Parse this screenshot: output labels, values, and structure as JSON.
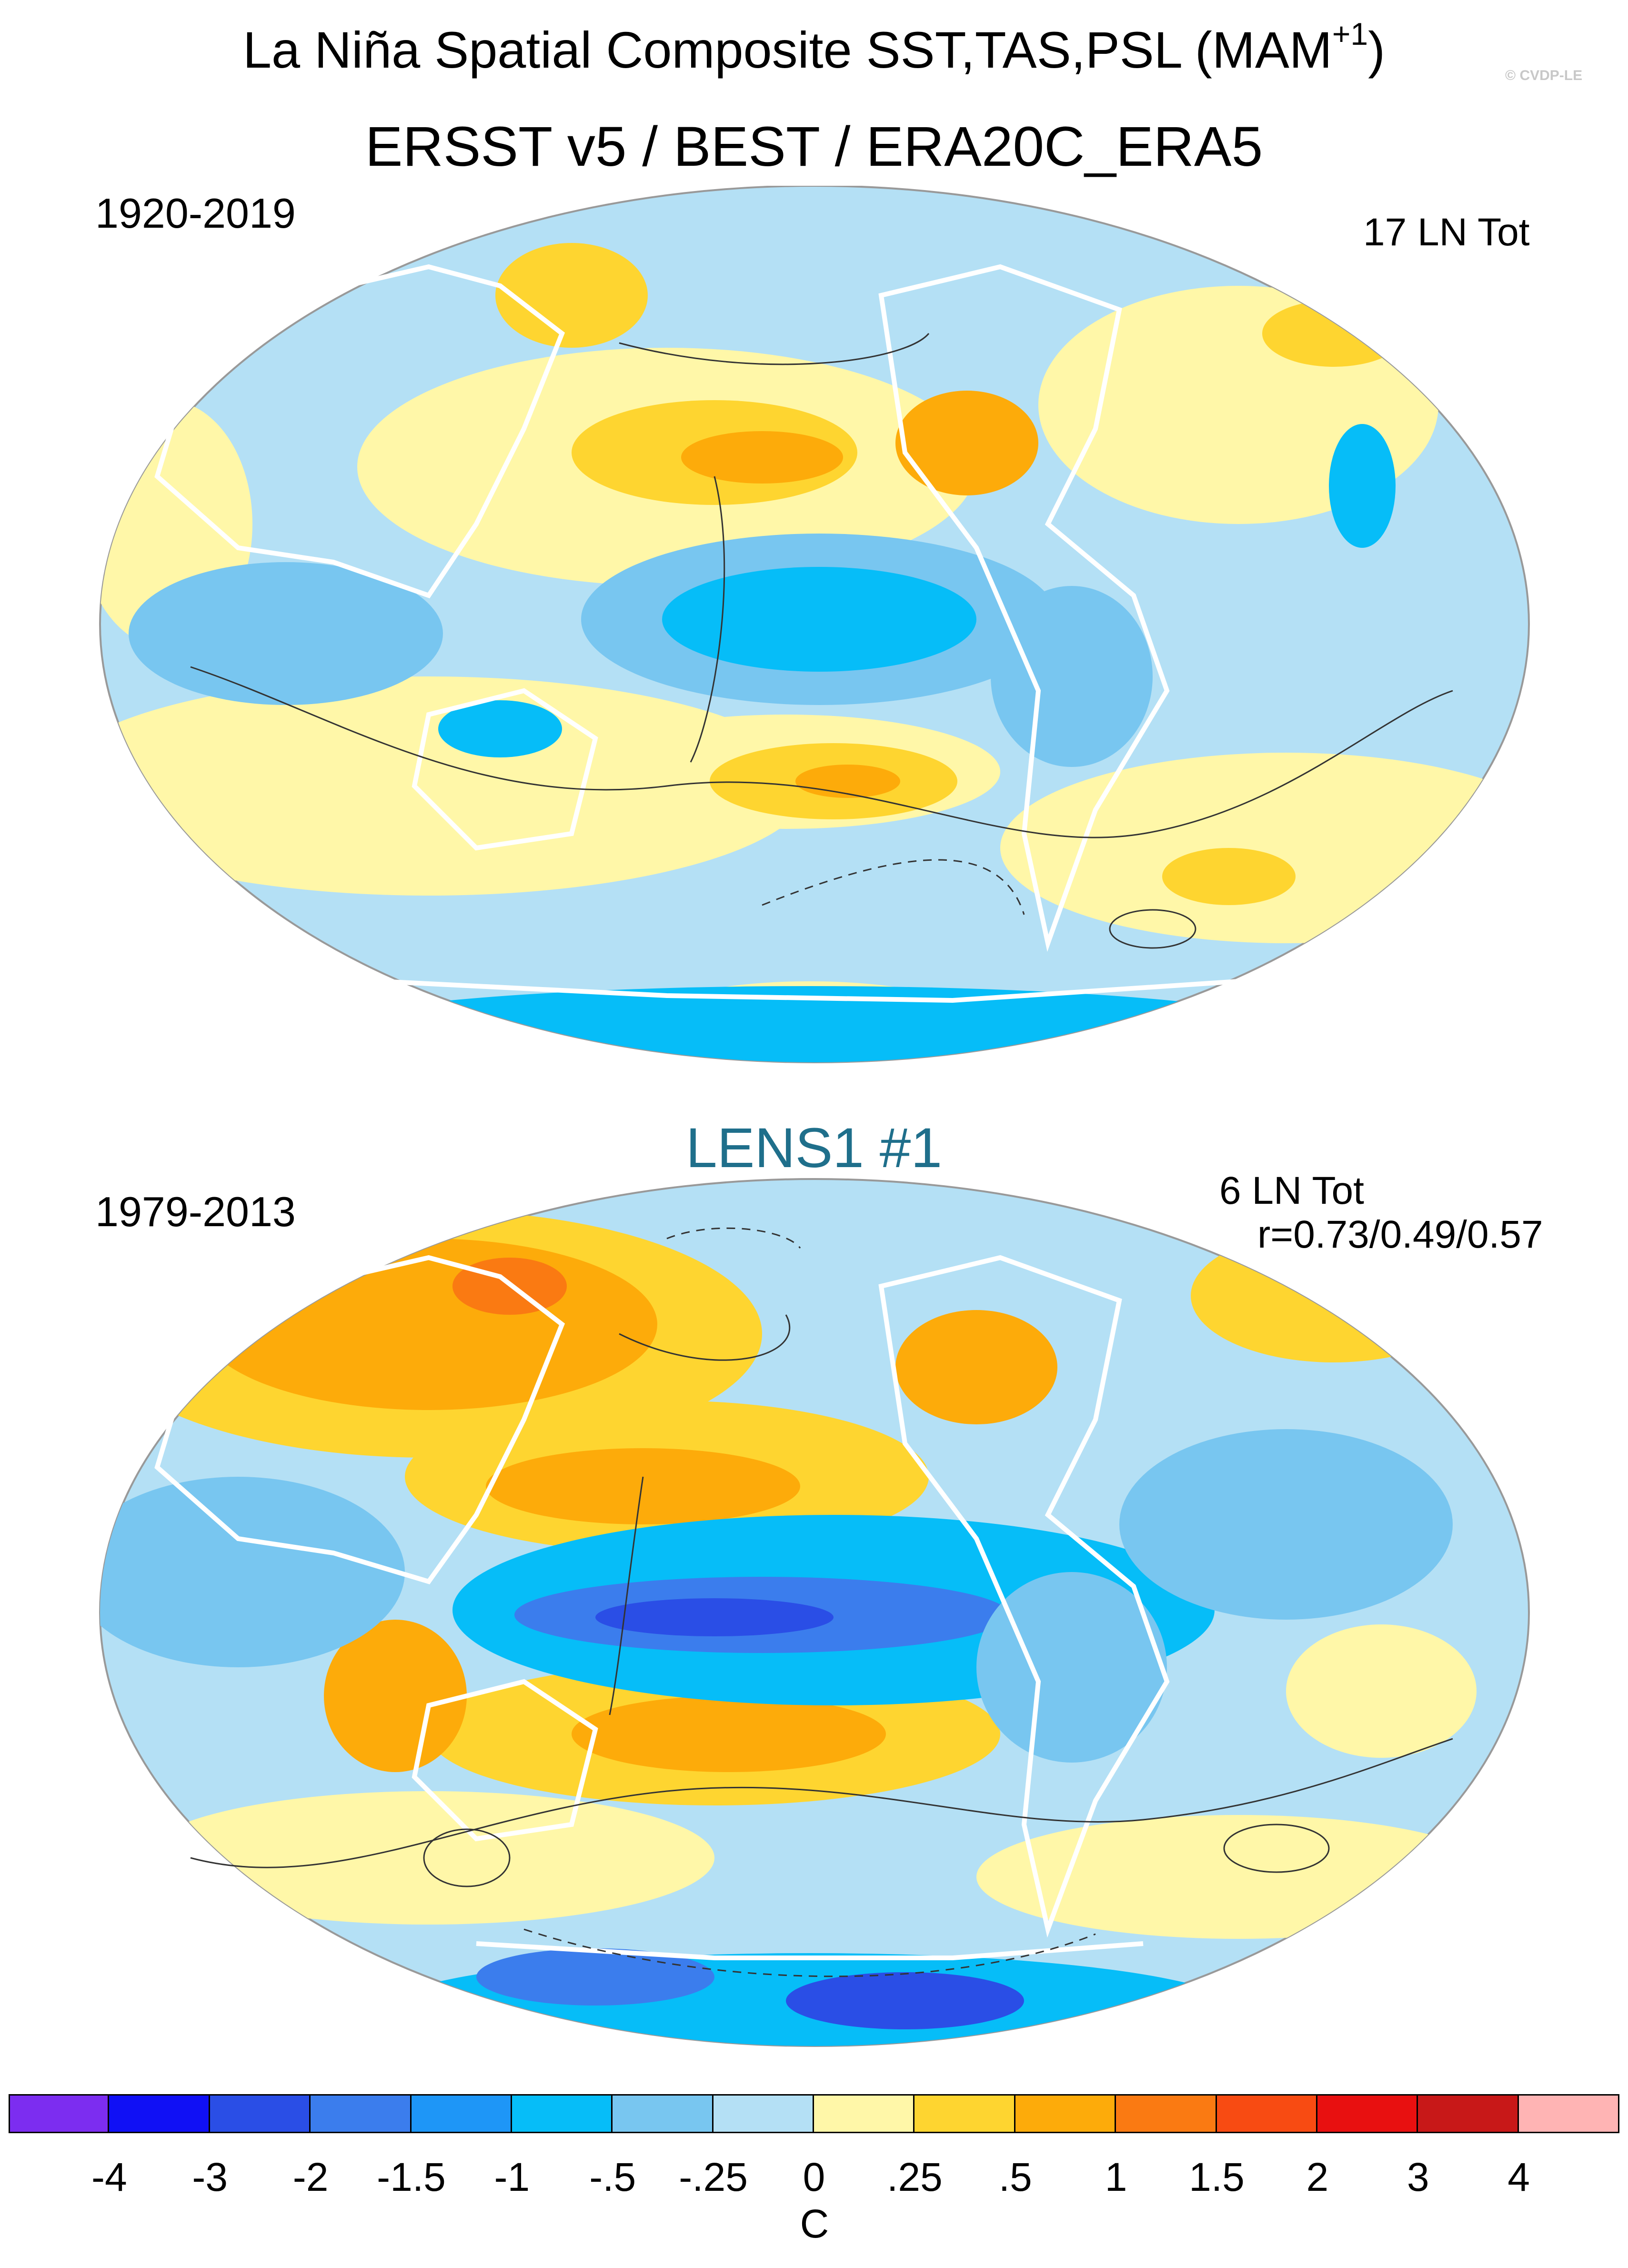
{
  "title": {
    "main": "La Niña Spatial Composite SST,TAS,PSL (MAM",
    "superscript": "+1",
    "close": ")"
  },
  "watermark": "© CVDP-LE",
  "subtitle": "ERSST v5 / BEST / ERA20C_ERA5",
  "panels": [
    {
      "id": "observations",
      "period": "1920-2019",
      "event_count": "17 LN Tot"
    },
    {
      "id": "lens1",
      "model_label": "LENS1 #1",
      "period": "1979-2013",
      "event_count": "6 LN Tot",
      "pattern_correlation": "r=0.73/0.49/0.57"
    }
  ],
  "colorbar": {
    "colors": [
      "#7c2df0",
      "#1010f5",
      "#2a4ee6",
      "#3b7ded",
      "#1e96f7",
      "#06bdf8",
      "#78c6f0",
      "#b4e0f5",
      "#fff7a8",
      "#fed530",
      "#fdab0a",
      "#fa7a12",
      "#f84b12",
      "#e81010",
      "#c81818",
      "#ffb4b4"
    ],
    "tick_labels": [
      "-4",
      "-3",
      "-2",
      "-1.5",
      "-1",
      "-.5",
      "-.25",
      "0",
      ".25",
      ".5",
      "1",
      "1.5",
      "2",
      "3",
      "4"
    ],
    "unit": "C"
  },
  "map_colors": {
    "ocean_bg": "#b4e0f5",
    "land_mask": "#ffffff",
    "contour": "#333333"
  }
}
